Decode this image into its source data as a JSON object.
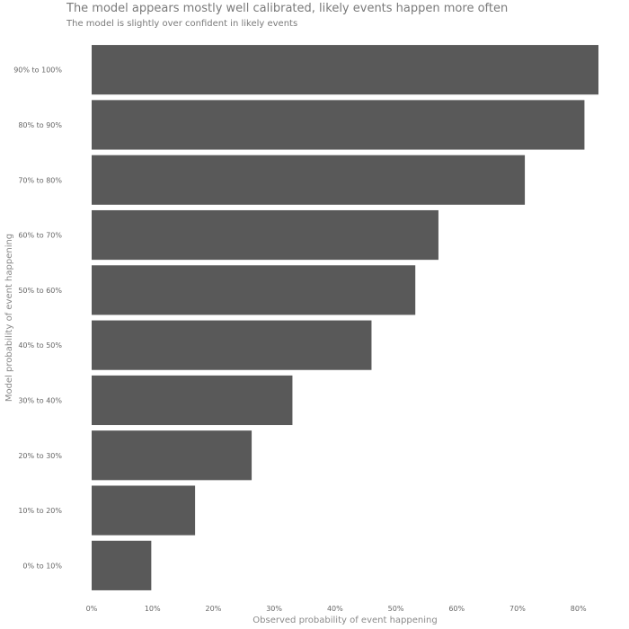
{
  "chart_data": {
    "type": "bar",
    "orientation": "horizontal",
    "title": "The model appears mostly well calibrated, likely events happen more often",
    "subtitle": "The model is slightly over confident in likely events",
    "xlabel": "Observed probability of event happening",
    "ylabel": "Model probability of event happening",
    "categories": [
      "0% to 10%",
      "10% to 20%",
      "20% to 30%",
      "30% to 40%",
      "40% to 50%",
      "50% to 60%",
      "60% to 70%",
      "70% to 80%",
      "80% to 90%",
      "90% to 100%"
    ],
    "values": [
      9.8,
      17.0,
      26.3,
      33.0,
      46.0,
      53.2,
      57.0,
      71.2,
      81.0,
      83.3
    ],
    "xlim": [
      0,
      83.3
    ],
    "xticks": [
      0,
      10,
      20,
      30,
      40,
      50,
      60,
      70,
      80
    ],
    "xtick_labels": [
      "0%",
      "10%",
      "20%",
      "30%",
      "40%",
      "50%",
      "60%",
      "70%",
      "80%"
    ],
    "grid": false,
    "bar_color": "#595959"
  }
}
